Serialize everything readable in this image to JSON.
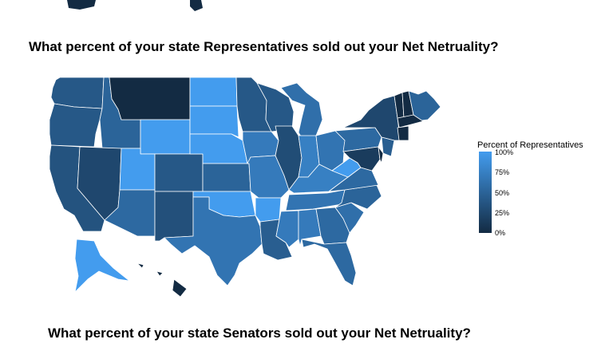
{
  "titles": {
    "representatives": "What percent of your state Representatives sold out your Net Netruality?",
    "senators": "What percent of your state Senators sold out your Net Netruality?"
  },
  "legend": {
    "title": "Percent of Representatives",
    "ticks": [
      "100%",
      "75%",
      "50%",
      "25%",
      "0%"
    ],
    "color_low": "#132b43",
    "color_high": "#439cee"
  },
  "map_data": {
    "type": "choropleth",
    "value_field": "percent_of_representatives",
    "scale": [
      0,
      100
    ],
    "states": [
      {
        "id": "WA",
        "value": 40
      },
      {
        "id": "OR",
        "value": 40
      },
      {
        "id": "CA",
        "value": 35
      },
      {
        "id": "ID",
        "value": 50
      },
      {
        "id": "NV",
        "value": 25
      },
      {
        "id": "MT",
        "value": 0
      },
      {
        "id": "WY",
        "value": 100
      },
      {
        "id": "UT",
        "value": 100
      },
      {
        "id": "AZ",
        "value": 55
      },
      {
        "id": "CO",
        "value": 40
      },
      {
        "id": "NM",
        "value": 33
      },
      {
        "id": "ND",
        "value": 100
      },
      {
        "id": "SD",
        "value": 100
      },
      {
        "id": "NE",
        "value": 100
      },
      {
        "id": "KS",
        "value": 50
      },
      {
        "id": "OK",
        "value": 100
      },
      {
        "id": "TX",
        "value": 65
      },
      {
        "id": "MN",
        "value": 40
      },
      {
        "id": "IA",
        "value": 70
      },
      {
        "id": "MO",
        "value": 70
      },
      {
        "id": "AR",
        "value": 100
      },
      {
        "id": "LA",
        "value": 45
      },
      {
        "id": "WI",
        "value": 40
      },
      {
        "id": "IL",
        "value": 30
      },
      {
        "id": "MI",
        "value": 60
      },
      {
        "id": "IN",
        "value": 75
      },
      {
        "id": "OH",
        "value": 65
      },
      {
        "id": "KY",
        "value": 75
      },
      {
        "id": "TN",
        "value": 65
      },
      {
        "id": "MS",
        "value": 70
      },
      {
        "id": "AL",
        "value": 70
      },
      {
        "id": "GA",
        "value": 55
      },
      {
        "id": "FL",
        "value": 55
      },
      {
        "id": "SC",
        "value": 60
      },
      {
        "id": "NC",
        "value": 50
      },
      {
        "id": "VA",
        "value": 55
      },
      {
        "id": "WV",
        "value": 100
      },
      {
        "id": "PA",
        "value": 55
      },
      {
        "id": "NY",
        "value": 25
      },
      {
        "id": "VT",
        "value": 0
      },
      {
        "id": "NH",
        "value": 0
      },
      {
        "id": "ME",
        "value": 50
      },
      {
        "id": "MA",
        "value": 0
      },
      {
        "id": "CT",
        "value": 0
      },
      {
        "id": "NJ",
        "value": 45
      },
      {
        "id": "MD",
        "value": 15
      },
      {
        "id": "DE",
        "value": 0
      },
      {
        "id": "AK",
        "value": 100
      },
      {
        "id": "HI",
        "value": 0
      }
    ]
  }
}
